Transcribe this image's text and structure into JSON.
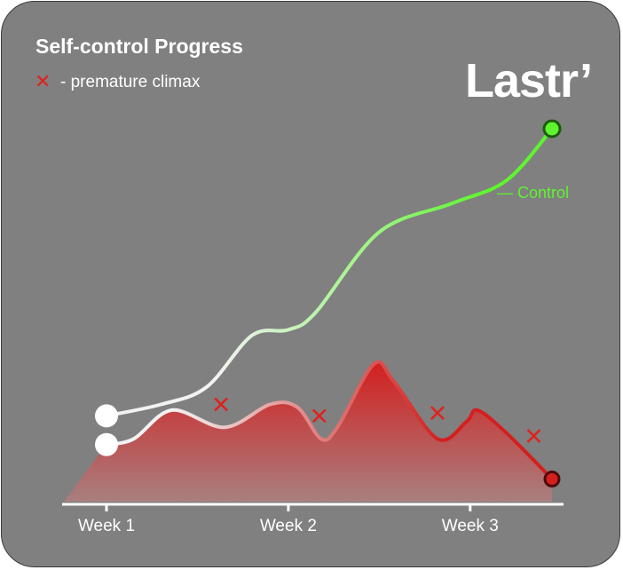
{
  "chart_data": {
    "type": "line",
    "title": "Self-control Progress",
    "legend_marker": "✕",
    "legend_text": "- premature climax",
    "brand": "Lastr’",
    "categories": [
      "Week 1",
      "Week 2",
      "Week 3"
    ],
    "series": [
      {
        "name": "Control",
        "label": "— Control",
        "color_start": "#f2f2f2",
        "color_end": "#5ef52e",
        "points": [
          [
            0,
            5
          ],
          [
            0.3,
            7
          ],
          [
            0.55,
            10
          ],
          [
            0.8,
            19
          ],
          [
            1.0,
            20
          ],
          [
            1.15,
            23
          ],
          [
            1.5,
            37
          ],
          [
            1.9,
            42
          ],
          [
            2.2,
            46
          ],
          [
            2.45,
            55
          ]
        ]
      },
      {
        "name": "Premature climax",
        "color_start": "#f2f2f2",
        "color_end": "#d41f1f",
        "fill_top": "#d41f1f",
        "fill_bottom": "#a88080",
        "points": [
          [
            0,
            0
          ],
          [
            0.15,
            1
          ],
          [
            0.36,
            6
          ],
          [
            0.65,
            3
          ],
          [
            0.9,
            7
          ],
          [
            1.05,
            6.5
          ],
          [
            1.18,
            1
          ],
          [
            1.27,
            3
          ],
          [
            1.47,
            14
          ],
          [
            1.58,
            11
          ],
          [
            1.82,
            1
          ],
          [
            1.98,
            4
          ],
          [
            2.04,
            6
          ],
          [
            2.2,
            2
          ],
          [
            2.45,
            -6
          ]
        ]
      }
    ],
    "markers": [
      [
        0.63,
        7
      ],
      [
        1.17,
        5
      ],
      [
        1.82,
        5.5
      ],
      [
        2.35,
        1.5
      ]
    ],
    "xlim": [
      0,
      2.45
    ],
    "ylim": [
      -7,
      55
    ],
    "grid": false,
    "legend_position": "top-left"
  },
  "colors": {
    "background": "#808080",
    "text": "#ffffff",
    "marker": "#e0201c",
    "control_label": "#5ef52e"
  }
}
